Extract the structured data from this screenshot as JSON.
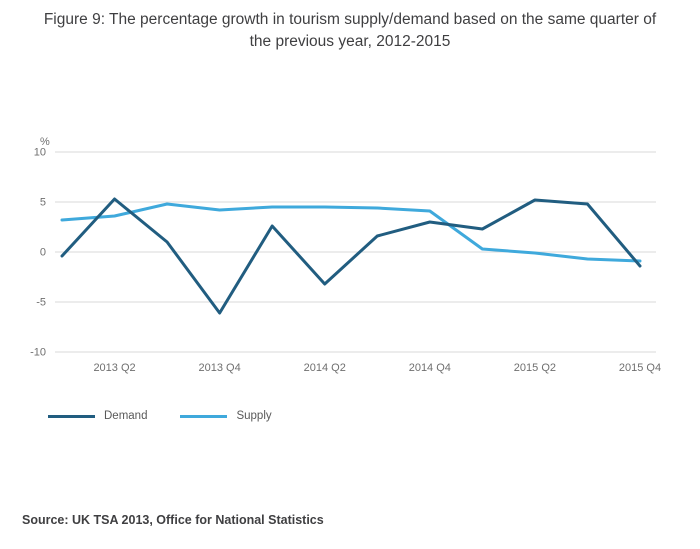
{
  "title": "Figure 9: The percentage growth in tourism supply/demand based on the same quarter of the previous year, 2012-2015",
  "source": "Source: UK TSA 2013, Office for National Statistics",
  "colors": {
    "demand": "#215d80",
    "supply": "#3fa9dc",
    "gridline": "#d9d9d9",
    "tick_text": "#6f6f6f"
  },
  "chart_data": {
    "type": "line",
    "x": [
      "2013 Q1",
      "2013 Q2",
      "2013 Q3",
      "2013 Q4",
      "2014 Q1",
      "2014 Q2",
      "2014 Q3",
      "2014 Q4",
      "2015 Q1",
      "2015 Q2",
      "2015 Q3",
      "2015 Q4"
    ],
    "x_tick_labels": [
      "2013 Q2",
      "2013 Q4",
      "2014 Q2",
      "2014 Q4",
      "2015 Q2",
      "2015 Q4"
    ],
    "ylabel": "%",
    "ylim": [
      -10,
      10
    ],
    "yticks": [
      10,
      5,
      0,
      -5,
      -10
    ],
    "grid": "horizontal",
    "legend_position": "bottom-left",
    "series": [
      {
        "name": "Demand",
        "color": "#215d80",
        "values": [
          -0.4,
          5.3,
          1.0,
          -6.1,
          2.6,
          -3.2,
          1.6,
          3.0,
          2.3,
          5.2,
          4.8,
          -1.4
        ]
      },
      {
        "name": "Supply",
        "color": "#3fa9dc",
        "values": [
          3.2,
          3.6,
          4.8,
          4.2,
          4.5,
          4.5,
          4.4,
          4.1,
          0.3,
          -0.1,
          -0.7,
          -0.9
        ]
      }
    ]
  }
}
